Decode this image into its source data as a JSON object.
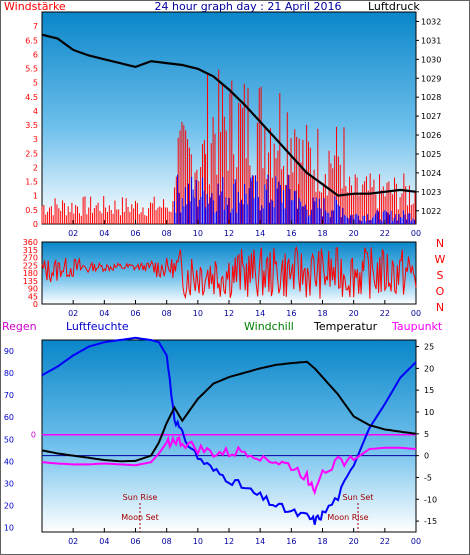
{
  "header": {
    "title": "24 hour graph day : 21 April 2016",
    "left_label": "Windstärke",
    "right_label": "Luftdruck"
  },
  "middle": {
    "compass": [
      "N",
      "W",
      "S",
      "O",
      "N"
    ]
  },
  "bottom": {
    "labels": {
      "regen": "Regen",
      "luftfeuchte": "Luftfeuchte",
      "windchill": "Windchill",
      "temperatur": "Temperatur",
      "taupunkt": "Taupunkt"
    },
    "annotations": {
      "sun_rise": "Sun Rise",
      "moon_set": "Moon Set",
      "sun_set": "Sun Set",
      "moon_rise": "Moon Rise"
    }
  },
  "colors": {
    "wind_red": "#ff0000",
    "wind_blue": "#0000ff",
    "pressure": "#000000",
    "humidity": "#0000ff",
    "temperature": "#000000",
    "dewpoint": "#ff00ff",
    "rain_line": "#ff00ff"
  },
  "chart_data": [
    {
      "type": "bar",
      "name_ref": "wind-and-pressure",
      "x_ticks": [
        "02",
        "04",
        "06",
        "08",
        "10",
        "12",
        "14",
        "16",
        "18",
        "20",
        "22",
        "00"
      ],
      "y_left_ticks": [
        "0",
        "0.5",
        "1",
        "1.5",
        "2",
        "2.5",
        "3",
        "3.5",
        "4",
        "4.5",
        "5",
        "5.5",
        "6",
        "6.5",
        "7"
      ],
      "y_right_ticks": [
        "1022",
        "1023",
        "1024",
        "1025",
        "1026",
        "1027",
        "1028",
        "1029",
        "1030",
        "1031",
        "1032"
      ],
      "ylim_left": [
        0,
        7.5
      ],
      "ylim_right": [
        1021.3,
        1032.5
      ],
      "pressure": {
        "x": [
          0,
          1,
          2,
          3,
          4,
          5,
          6,
          7,
          8,
          9,
          10,
          11,
          12,
          13,
          14,
          15,
          16,
          17,
          18,
          19,
          20,
          21,
          22,
          23,
          24
        ],
        "y": [
          1031.3,
          1031.1,
          1030.5,
          1030.2,
          1030.0,
          1029.8,
          1029.6,
          1029.9,
          1029.8,
          1029.7,
          1029.5,
          1029.1,
          1028.4,
          1027.6,
          1026.7,
          1025.8,
          1024.9,
          1024.0,
          1023.4,
          1022.8,
          1022.9,
          1022.9,
          1023.0,
          1023.1,
          1023.0
        ]
      },
      "wind_gust_red": [
        {
          "from": 0,
          "to": 8.5,
          "value": 1.0
        },
        {
          "from": 8.5,
          "to": 10.5,
          "value": 3.7
        },
        {
          "from": 10.5,
          "to": 12.5,
          "value": 5.5
        },
        {
          "from": 12.5,
          "to": 16.5,
          "value": 5.5
        },
        {
          "from": 16.5,
          "to": 19.5,
          "value": 3.7
        },
        {
          "from": 19.5,
          "to": 24,
          "value": 1.8
        }
      ],
      "wind_avg_blue": [
        {
          "from": 8.5,
          "to": 10.5,
          "value": 1.8
        },
        {
          "from": 10.5,
          "to": 16.5,
          "value": 1.8
        },
        {
          "from": 16.5,
          "to": 19.5,
          "value": 1.0
        },
        {
          "from": 19.5,
          "to": 24,
          "value": 0.5
        }
      ]
    },
    {
      "type": "scatter",
      "name_ref": "wind-direction",
      "x_ticks": [
        "02",
        "04",
        "06",
        "08",
        "10",
        "12",
        "14",
        "16",
        "18",
        "20",
        "22",
        "00"
      ],
      "y_ticks": [
        "0",
        "45",
        "90",
        "135",
        "180",
        "225",
        "270",
        "315",
        "360"
      ],
      "ylim": [
        0,
        360
      ]
    },
    {
      "type": "line",
      "name_ref": "temperature-humidity",
      "x_ticks": [
        "02",
        "04",
        "06",
        "08",
        "10",
        "12",
        "14",
        "16",
        "18",
        "20",
        "22",
        "00"
      ],
      "y_left_ticks": [
        "10",
        "20",
        "30",
        "40",
        "50",
        "60",
        "70",
        "80",
        "90"
      ],
      "y_right_ticks": [
        "-15",
        "-10",
        "-5",
        "0",
        "5",
        "10",
        "15",
        "20",
        "25"
      ],
      "y_rain_tick": "0",
      "ylim_left": [
        8,
        95
      ],
      "ylim_right": [
        -17.5,
        26.5
      ],
      "series": [
        {
          "name": "Luftfeuchte",
          "x": [
            0,
            1,
            2,
            3,
            4,
            5,
            6,
            7,
            7.5,
            8,
            8.5,
            9,
            10,
            11,
            12,
            13,
            14,
            15,
            16,
            17,
            17.5,
            18,
            19,
            20,
            21,
            22,
            23,
            24
          ],
          "y": [
            79,
            83,
            88,
            92,
            94,
            95,
            96,
            95,
            94,
            88,
            60,
            52,
            42,
            36,
            32,
            28,
            24,
            20,
            17,
            15,
            13,
            16,
            24,
            38,
            55,
            66,
            78,
            85
          ]
        },
        {
          "name": "Temperatur",
          "x": [
            0,
            1,
            2,
            3,
            4,
            5,
            6,
            7,
            7.5,
            8,
            8.5,
            9,
            10,
            11,
            12,
            13,
            14,
            15,
            16,
            17,
            17.5,
            18,
            19,
            20,
            21,
            22,
            23,
            24
          ],
          "y": [
            1.2,
            0.5,
            0.0,
            -0.5,
            -1.0,
            -1.3,
            -1.2,
            0.0,
            3.0,
            7.5,
            11.0,
            8.0,
            13.0,
            16.5,
            18.0,
            19.0,
            20.0,
            20.8,
            21.2,
            21.5,
            20.0,
            18.0,
            14.0,
            9.0,
            7.0,
            6.0,
            5.5,
            5.0
          ]
        },
        {
          "name": "Taupunkt",
          "x": [
            0,
            1,
            2,
            3,
            4,
            5,
            6,
            7,
            7.5,
            8,
            8.5,
            9,
            10,
            11,
            12,
            13,
            14,
            15,
            16,
            17,
            17.5,
            18,
            19,
            20,
            21,
            22,
            23,
            24
          ],
          "y": [
            -1.5,
            -1.8,
            -2.0,
            -2.0,
            -1.8,
            -2.0,
            -2.2,
            -1.5,
            0.5,
            3.0,
            3.5,
            3.0,
            1.5,
            0.5,
            0.5,
            1.0,
            0.0,
            -1.5,
            -2.5,
            -5.0,
            -7.5,
            -3.0,
            -1.5,
            -1.0,
            1.5,
            1.8,
            1.8,
            1.5
          ]
        },
        {
          "name": "Regen",
          "x": [
            0,
            24
          ],
          "y": [
            0,
            0
          ]
        }
      ]
    }
  ]
}
